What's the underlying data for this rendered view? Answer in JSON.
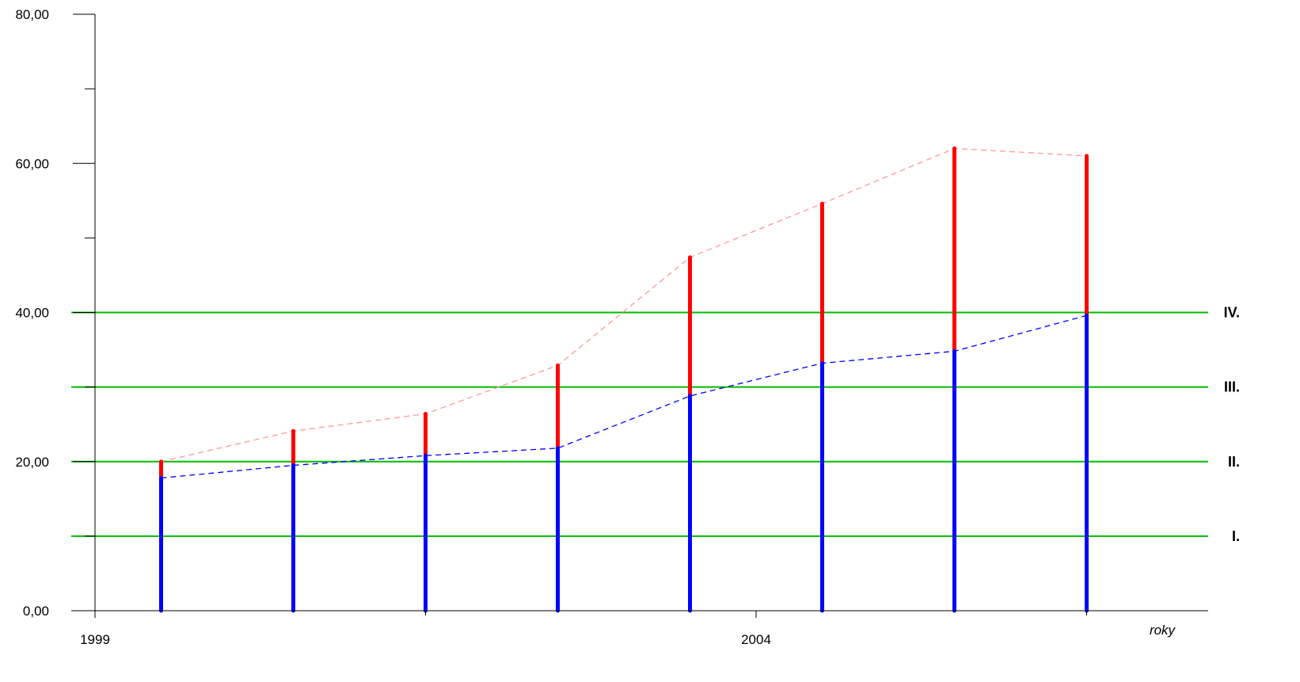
{
  "chart_data": {
    "type": "bar",
    "title": "",
    "xlabel": "roky",
    "ylabel": "",
    "ylim": [
      0,
      80
    ],
    "xlim": [
      1999,
      2007
    ],
    "x_tick_labels": [
      {
        "value": 1999,
        "label": "1999"
      },
      {
        "value": 2004,
        "label": "2004"
      }
    ],
    "x_minor_ticks": [
      2001.5,
      2006.5
    ],
    "y_tick_labels": [
      {
        "value": 0,
        "label": "0,00"
      },
      {
        "value": 20,
        "label": "20,00"
      },
      {
        "value": 40,
        "label": "40,00"
      },
      {
        "value": 60,
        "label": "60,00"
      },
      {
        "value": 80,
        "label": "80,00"
      }
    ],
    "y_minor_ticks": [
      10,
      30,
      50,
      70
    ],
    "x": [
      1999.5,
      2000.5,
      2001.5,
      2002.5,
      2003.5,
      2004.5,
      2005.5,
      2006.5
    ],
    "series": [
      {
        "values": [
          17.8,
          19.5,
          20.8,
          21.8,
          28.8,
          33.2,
          34.8,
          39.6
        ],
        "color": "#0000ff"
      },
      {
        "values": [
          20.0,
          24.1,
          26.4,
          32.9,
          47.4,
          54.6,
          62.0,
          61.0
        ],
        "color": "#ff0000"
      }
    ],
    "reference_lines": [
      {
        "value": 10,
        "label": "I.",
        "color": "#00bb00"
      },
      {
        "value": 20,
        "label": "II.",
        "color": "#00bb00"
      },
      {
        "value": 30,
        "label": "III.",
        "color": "#00bb00"
      },
      {
        "value": 40,
        "label": "IV.",
        "color": "#00bb00"
      }
    ],
    "trend_lines": [
      {
        "series_index": 0,
        "style": "dashed",
        "color": "#0000ff"
      },
      {
        "series_index": 1,
        "style": "dashed",
        "color": "#ff9999"
      }
    ],
    "grid": false
  }
}
